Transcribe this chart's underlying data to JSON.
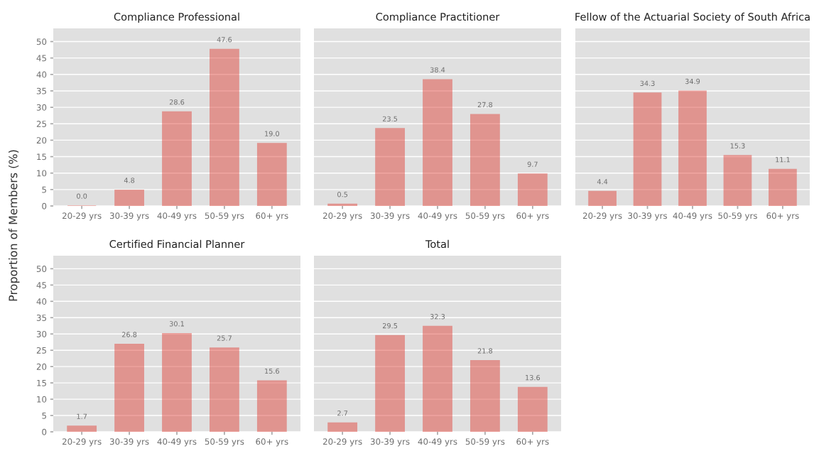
{
  "chart_data": [
    {
      "type": "bar",
      "title": "Compliance Professional",
      "ylabel": "Proportion of Members (%)",
      "categories": [
        "20-29 yrs",
        "30-39 yrs",
        "40-49 yrs",
        "50-59 yrs",
        "60+ yrs"
      ],
      "values": [
        0,
        4.8,
        28.6,
        47.6,
        19
      ],
      "value_labels": [
        "0.0",
        "4.8",
        "28.6",
        "47.6",
        "19.0"
      ],
      "color": "#e0392f",
      "ylim": [
        0,
        54
      ],
      "yticks": [
        0,
        5,
        10,
        15,
        20,
        25,
        30,
        35,
        40,
        45,
        50
      ],
      "grid": "y",
      "legend": false
    },
    {
      "type": "bar",
      "title": "Compliance Practitioner",
      "categories": [
        "20-29 yrs",
        "30-39 yrs",
        "40-49 yrs",
        "50-59 yrs",
        "60+ yrs"
      ],
      "values": [
        0.5,
        23.5,
        38.4,
        27.8,
        9.7
      ],
      "color": "#e0392f",
      "ylim": [
        0,
        54
      ],
      "yticks": [
        0,
        5,
        10,
        15,
        20,
        25,
        30,
        35,
        40,
        45,
        50
      ],
      "grid": "y",
      "data_labels": true,
      "legend": false,
      "tick_labels": "x"
    },
    {
      "type": "bar",
      "title": "Fellow of the Actuarial Society of South Africa",
      "categories": [
        "20-29 yrs",
        "30-39 yrs",
        "40-49 yrs",
        "50-59 yrs",
        "60+ yrs"
      ],
      "values": [
        4.4,
        34.3,
        34.9,
        15.3,
        11.1
      ],
      "color": "#e0392f",
      "ylim": [
        0,
        54
      ],
      "yticks": [
        0,
        5,
        10,
        15,
        20,
        25,
        30,
        35,
        40,
        45,
        50
      ],
      "grid": "y",
      "data_labels": true,
      "legend": false,
      "tick_labels": "x"
    },
    {
      "type": "bar",
      "title": "Certified Financial Planner",
      "categories": [
        "20-29 yrs",
        "30-39 yrs",
        "40-49 yrs",
        "50-59 yrs",
        "60+ yrs"
      ],
      "values": [
        1.7,
        26.8,
        30.1,
        25.7,
        15.6
      ],
      "color": "#e0392f",
      "ylim": [
        0,
        54
      ],
      "yticks": [
        0,
        5,
        10,
        15,
        20,
        25,
        30,
        35,
        40,
        45,
        50
      ],
      "grid": "y",
      "data_labels": true,
      "legend": false
    },
    {
      "type": "bar",
      "title": "Total",
      "categories": [
        "20-29 yrs",
        "30-39 yrs",
        "40-49 yrs",
        "50-59 yrs",
        "60+ yrs"
      ],
      "values": [
        2.7,
        29.5,
        32.3,
        21.8,
        13.6
      ],
      "color": "#e0392f",
      "ylim": [
        0,
        54
      ],
      "yticks": [
        0,
        5,
        10,
        15,
        20,
        25,
        30,
        35,
        40,
        45,
        50
      ],
      "grid": "y",
      "data_labels": true,
      "legend": false,
      "tick_labels": "x"
    }
  ]
}
